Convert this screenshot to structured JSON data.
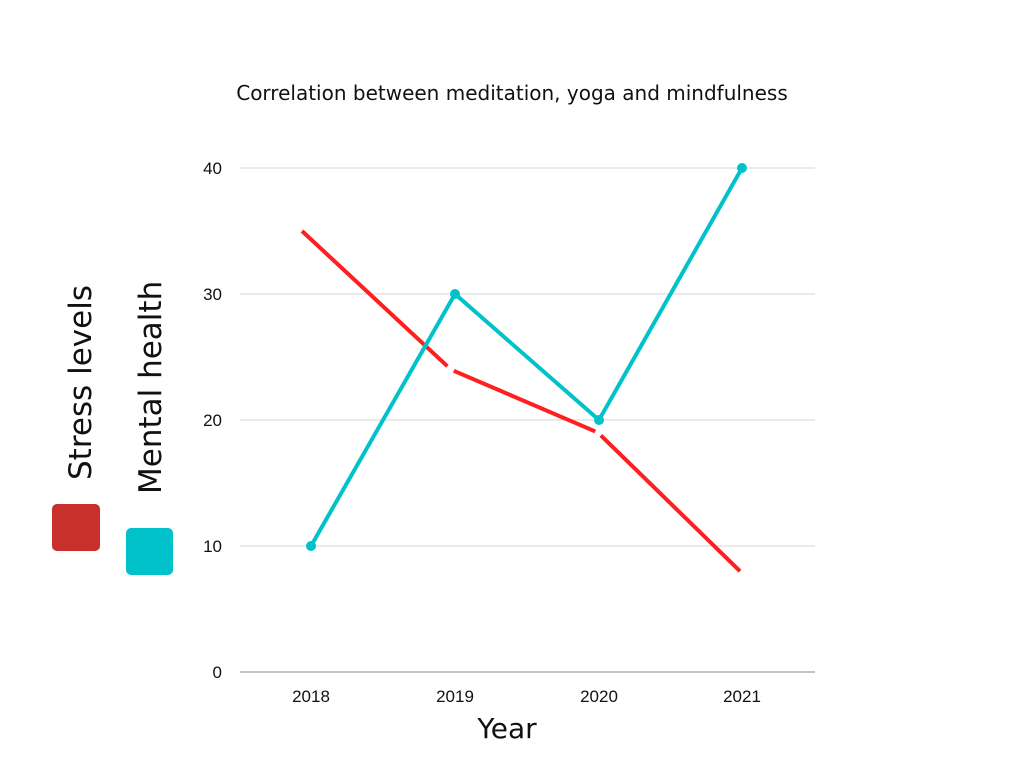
{
  "chart_data": {
    "type": "line",
    "title": "Correlation between meditation, yoga and mindfulness",
    "xlabel": "Year",
    "ylabel": "",
    "categories": [
      "2018",
      "2019",
      "2020",
      "2021"
    ],
    "ylim": [
      0,
      40
    ],
    "yticks": [
      0,
      10,
      20,
      30,
      40
    ],
    "grid": true,
    "legend_position": "left",
    "series": [
      {
        "name": "Mental health",
        "color": "#00c2cb",
        "markers": true,
        "values": [
          10,
          30,
          20,
          40
        ]
      },
      {
        "name": "Stress levels",
        "color": "#ff1f1f",
        "markers": false,
        "values": [
          35,
          24,
          19,
          8
        ]
      }
    ],
    "legend": [
      {
        "label": "Stress levels",
        "color": "#c8302c"
      },
      {
        "label": "Mental health",
        "color": "#00c2cb"
      }
    ]
  }
}
